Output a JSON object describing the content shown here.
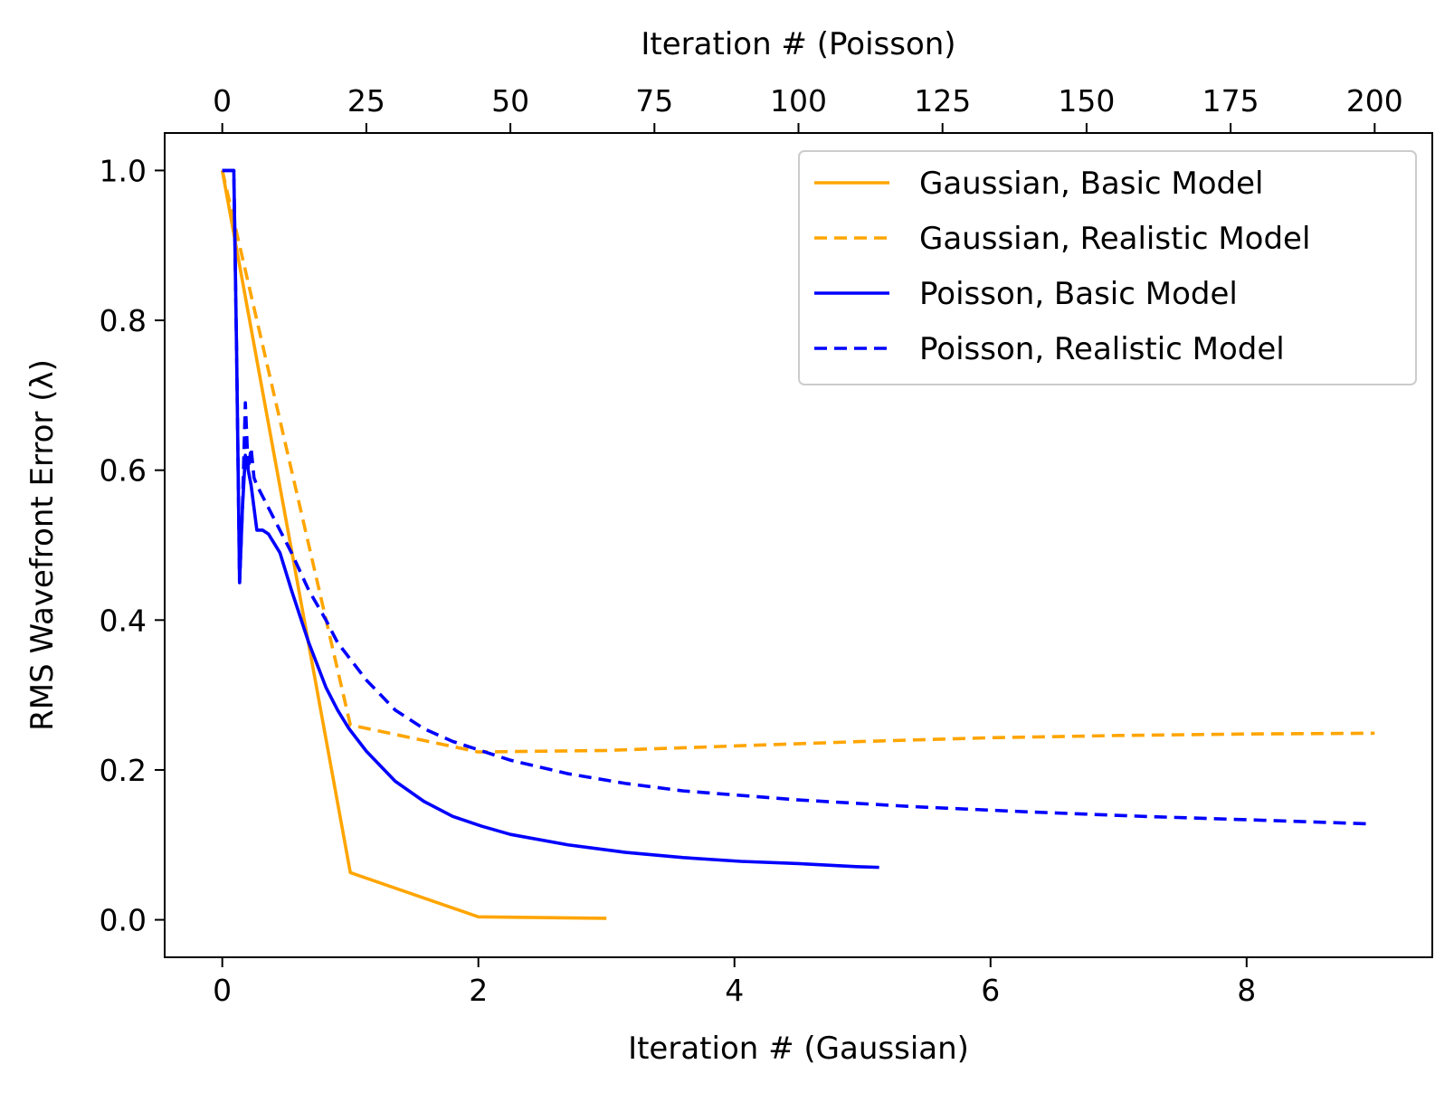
{
  "chart_data": {
    "type": "line",
    "title": "",
    "xlabel": "Iteration # (Gaussian)",
    "x2label": "Iteration # (Poisson)",
    "ylabel": "RMS Wavefront Error (λ)",
    "xlim": [
      -0.45,
      9.45
    ],
    "x2lim": [
      -10,
      210
    ],
    "ylim": [
      -0.05,
      1.05
    ],
    "xticks": [
      "0",
      "2",
      "4",
      "6",
      "8"
    ],
    "x2ticks": [
      "0",
      "25",
      "50",
      "75",
      "100",
      "125",
      "150",
      "175",
      "200"
    ],
    "yticks": [
      "0.0",
      "0.2",
      "0.4",
      "0.6",
      "0.8",
      "1.0"
    ],
    "grid": false,
    "legend_position": "top-right",
    "series": [
      {
        "name": "Gaussian, Basic Model",
        "axis": "bottom",
        "color": "#ffa500",
        "dash": "solid",
        "x": [
          0,
          1,
          2,
          3
        ],
        "y": [
          1.0,
          0.063,
          0.004,
          0.002
        ]
      },
      {
        "name": "Gaussian, Realistic Model",
        "axis": "bottom",
        "color": "#ffa500",
        "dash": "dashed",
        "x": [
          0,
          1,
          2,
          3,
          4,
          5,
          6,
          7,
          8,
          9
        ],
        "y": [
          1.0,
          0.26,
          0.224,
          0.226,
          0.232,
          0.238,
          0.243,
          0.246,
          0.248,
          0.249
        ]
      },
      {
        "name": "Poisson, Basic Model",
        "axis": "top",
        "color": "#0000ff",
        "dash": "solid",
        "x": [
          0,
          1,
          2,
          2.5,
          3,
          3.5,
          4,
          5,
          6,
          7,
          8,
          10,
          12,
          15,
          18,
          20,
          22,
          25,
          30,
          35,
          40,
          45,
          50,
          60,
          70,
          80,
          90,
          100,
          110,
          114
        ],
        "y": [
          1.0,
          1.0,
          1.0,
          0.75,
          0.45,
          0.55,
          0.62,
          0.58,
          0.52,
          0.52,
          0.515,
          0.49,
          0.44,
          0.37,
          0.31,
          0.28,
          0.255,
          0.225,
          0.185,
          0.158,
          0.138,
          0.125,
          0.114,
          0.1,
          0.09,
          0.083,
          0.078,
          0.075,
          0.071,
          0.07
        ]
      },
      {
        "name": "Poisson, Realistic Model",
        "axis": "top",
        "color": "#0000ff",
        "dash": "dashed",
        "x": [
          0,
          1,
          2,
          2.5,
          3,
          3.5,
          4,
          4.5,
          5,
          5.5,
          6,
          7,
          8,
          10,
          12,
          15,
          18,
          20,
          25,
          30,
          35,
          40,
          50,
          60,
          70,
          80,
          100,
          120,
          140,
          160,
          180,
          199
        ],
        "y": [
          1.0,
          1.0,
          1.0,
          0.75,
          0.45,
          0.55,
          0.69,
          0.6,
          0.63,
          0.59,
          0.58,
          0.565,
          0.55,
          0.52,
          0.49,
          0.44,
          0.4,
          0.37,
          0.32,
          0.28,
          0.255,
          0.238,
          0.213,
          0.195,
          0.182,
          0.172,
          0.16,
          0.151,
          0.144,
          0.138,
          0.133,
          0.128
        ]
      }
    ]
  }
}
